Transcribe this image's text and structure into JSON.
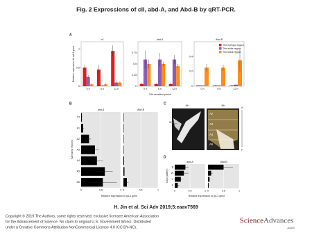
{
  "header": {
    "title": "Fig. 2 Expressions of cII, abd-A, and Abd-B by qRT-PCR."
  },
  "chart_data": [
    {
      "type": "bar",
      "orientation": "vertical",
      "label": "A",
      "ylabel": "Relative expression to rpL3 gene",
      "xlabel": "24h-sensitive period",
      "legend_position": "top-right",
      "legend": [
        {
          "name": "The eyespot region",
          "color": "#e41a1c"
        },
        {
          "name": "The white region",
          "color": "#8e5bb5"
        },
        {
          "name": "The black region",
          "color": "#ff8c1a"
        }
      ],
      "facets": [
        {
          "title": "cll",
          "categories": [
            "0 h",
            "6 h",
            "12 h"
          ],
          "ylim": [
            0,
            1.2
          ],
          "yticks": [
            0,
            0.5,
            1
          ],
          "series": [
            {
              "values": [
                0.5,
                0.45,
                0.95
              ],
              "errors": [
                0.08,
                0.12,
                0.15
              ]
            },
            {
              "values": [
                0.25,
                0.02,
                0.1
              ],
              "errors": [
                0.05,
                0.01,
                0.03
              ]
            },
            {
              "values": [
                0.05,
                0.05,
                0.1
              ],
              "errors": [
                0.02,
                0.02,
                0.03
              ]
            }
          ]
        },
        {
          "title": "abd-A",
          "categories": [
            "0 h",
            "6 h",
            "12 h"
          ],
          "ylim": [
            0,
            1
          ],
          "yticks": [
            0,
            0.25,
            0.5,
            0.75
          ],
          "series": [
            {
              "values": [
                0.05,
                0.05,
                0.05
              ],
              "errors": [
                0.02,
                0.02,
                0.02
              ]
            },
            {
              "values": [
                0.6,
                0.6,
                0.6
              ],
              "errors": [
                0.2,
                0.15,
                0.1
              ]
            },
            {
              "values": [
                0.5,
                0.5,
                0.45
              ],
              "errors": [
                0.1,
                0.05,
                0.05
              ]
            }
          ]
        },
        {
          "title": "Abd-B",
          "categories": [
            "0 h",
            "6 h",
            "12 h"
          ],
          "ylim": [
            0,
            0.6
          ],
          "yticks": [
            0,
            0.2,
            0.4
          ],
          "series": [
            {
              "values": [
                0.01,
                0.01,
                0.01
              ],
              "errors": [
                0.005,
                0.005,
                0.005
              ]
            },
            {
              "values": [
                0.01,
                0.01,
                0.02
              ],
              "errors": [
                0.005,
                0.005,
                0.01
              ]
            },
            {
              "values": [
                0.25,
                0.25,
                0.35
              ],
              "errors": [
                0.05,
                0.04,
                0.15
              ]
            }
          ]
        }
      ]
    },
    {
      "type": "bar",
      "orientation": "horizontal",
      "label": "B",
      "color": "#000000",
      "ylabel": "Sampling regions",
      "xlabel": "Relative expression to rpL3 gene",
      "facets": [
        {
          "title": "abd-A",
          "categories": [
            "T3",
            "A1",
            "A2",
            "A3",
            "A4",
            "A5",
            "A6"
          ],
          "xlim": [
            0,
            1
          ],
          "xticks": [
            0,
            0.5,
            1
          ],
          "values": [
            0.02,
            0.05,
            0.2,
            0.35,
            0.4,
            0.6,
            0.55
          ],
          "errors": [
            0.01,
            0.02,
            0.05,
            0.1,
            0.15,
            0.2,
            0.35
          ]
        },
        {
          "title": "Abd-B",
          "categories": [
            "T3",
            "A1",
            "A2",
            "A3",
            "A4",
            "A5",
            "A6"
          ],
          "xlim": [
            0,
            1
          ],
          "xticks": [
            0,
            0.5,
            1
          ],
          "values": [
            0.01,
            0.01,
            0.01,
            0.01,
            0.02,
            0.03,
            0.1
          ],
          "errors": [
            0.005,
            0.005,
            0.005,
            0.005,
            0.01,
            0.01,
            0.05
          ]
        }
      ]
    },
    {
      "type": "bar",
      "orientation": "horizontal",
      "label": "D",
      "color": "#000000",
      "ylabel": "Color pattern",
      "xlabel": "Relative expression to rpL3 gene",
      "facets": [
        {
          "title": "abd-A",
          "categories": [
            "B",
            "W",
            "Y",
            "E"
          ],
          "xlim": [
            0,
            1
          ],
          "xticks": [
            0,
            0.5,
            1
          ],
          "values": [
            0.35,
            0.3,
            0.2,
            0.1
          ],
          "errors": [
            0.1,
            0.15,
            0.05,
            0.05
          ]
        },
        {
          "title": "Abd-B",
          "categories": [
            "B",
            "W",
            "Y",
            "E"
          ],
          "xlim": [
            0,
            1
          ],
          "xticks": [
            0,
            0.5,
            1
          ],
          "values": [
            0.5,
            0.1,
            0.05,
            0.02
          ],
          "errors": [
            0.3,
            0.05,
            0.02,
            0.01
          ]
        }
      ]
    }
  ],
  "panel_c": {
    "label": "C",
    "stages": [
      "4th",
      "5th"
    ],
    "segments": [
      "A2",
      "A3",
      "A4",
      "A5"
    ],
    "marker": "W",
    "axis": [
      "A",
      "P"
    ]
  },
  "footer": {
    "citation": "H. Jin et al. Sci Adv 2019;5:eaav7569",
    "copyright": [
      "Copyright © 2019 The Authors, some rights reserved; exclusive licensee American Association",
      "for the Advancement of Science. No claim to original U.S. Government Works. Distributed",
      "under a Creative Commons Attribution NonCommercial License 4.0 (CC BY-NC)."
    ],
    "logo": [
      "Science",
      "Advances"
    ],
    "publisher": "AAAS"
  }
}
